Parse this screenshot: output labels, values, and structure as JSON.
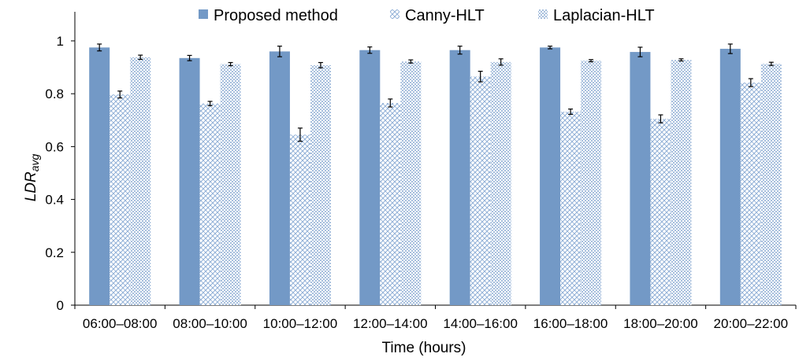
{
  "chart_data": {
    "type": "bar",
    "xlabel": "Time (hours)",
    "ylabel_main": "LDR",
    "ylabel_sub": "avg",
    "ylim": [
      0,
      1
    ],
    "yticks": [
      "0",
      "0.2",
      "0.4",
      "0.6",
      "0.8",
      "1"
    ],
    "grid": false,
    "legend_position": "top",
    "categories": [
      "06:00–08:00",
      "08:00–10:00",
      "10:00–12:00",
      "12:00–14:00",
      "14:00–16:00",
      "16:00–18:00",
      "18:00–20:00",
      "20:00–22:00"
    ],
    "series": [
      {
        "name": "Proposed method",
        "color": "#7399c6",
        "pattern": "solid",
        "values": [
          0.975,
          0.935,
          0.96,
          0.965,
          0.965,
          0.975,
          0.958,
          0.97
        ],
        "errors": [
          0.013,
          0.01,
          0.02,
          0.012,
          0.015,
          0.005,
          0.018,
          0.018
        ]
      },
      {
        "name": "Canny-HLT",
        "color": "#7399c6",
        "pattern": "crosshatch",
        "values": [
          0.797,
          0.763,
          0.645,
          0.765,
          0.865,
          0.732,
          0.705,
          0.842
        ],
        "errors": [
          0.013,
          0.008,
          0.025,
          0.015,
          0.02,
          0.01,
          0.015,
          0.015
        ]
      },
      {
        "name": "Laplacian-HLT",
        "color": "#7399c6",
        "pattern": "dotted",
        "values": [
          0.938,
          0.912,
          0.908,
          0.922,
          0.92,
          0.925,
          0.928,
          0.913
        ],
        "errors": [
          0.008,
          0.006,
          0.01,
          0.006,
          0.012,
          0.004,
          0.004,
          0.006
        ]
      }
    ]
  }
}
